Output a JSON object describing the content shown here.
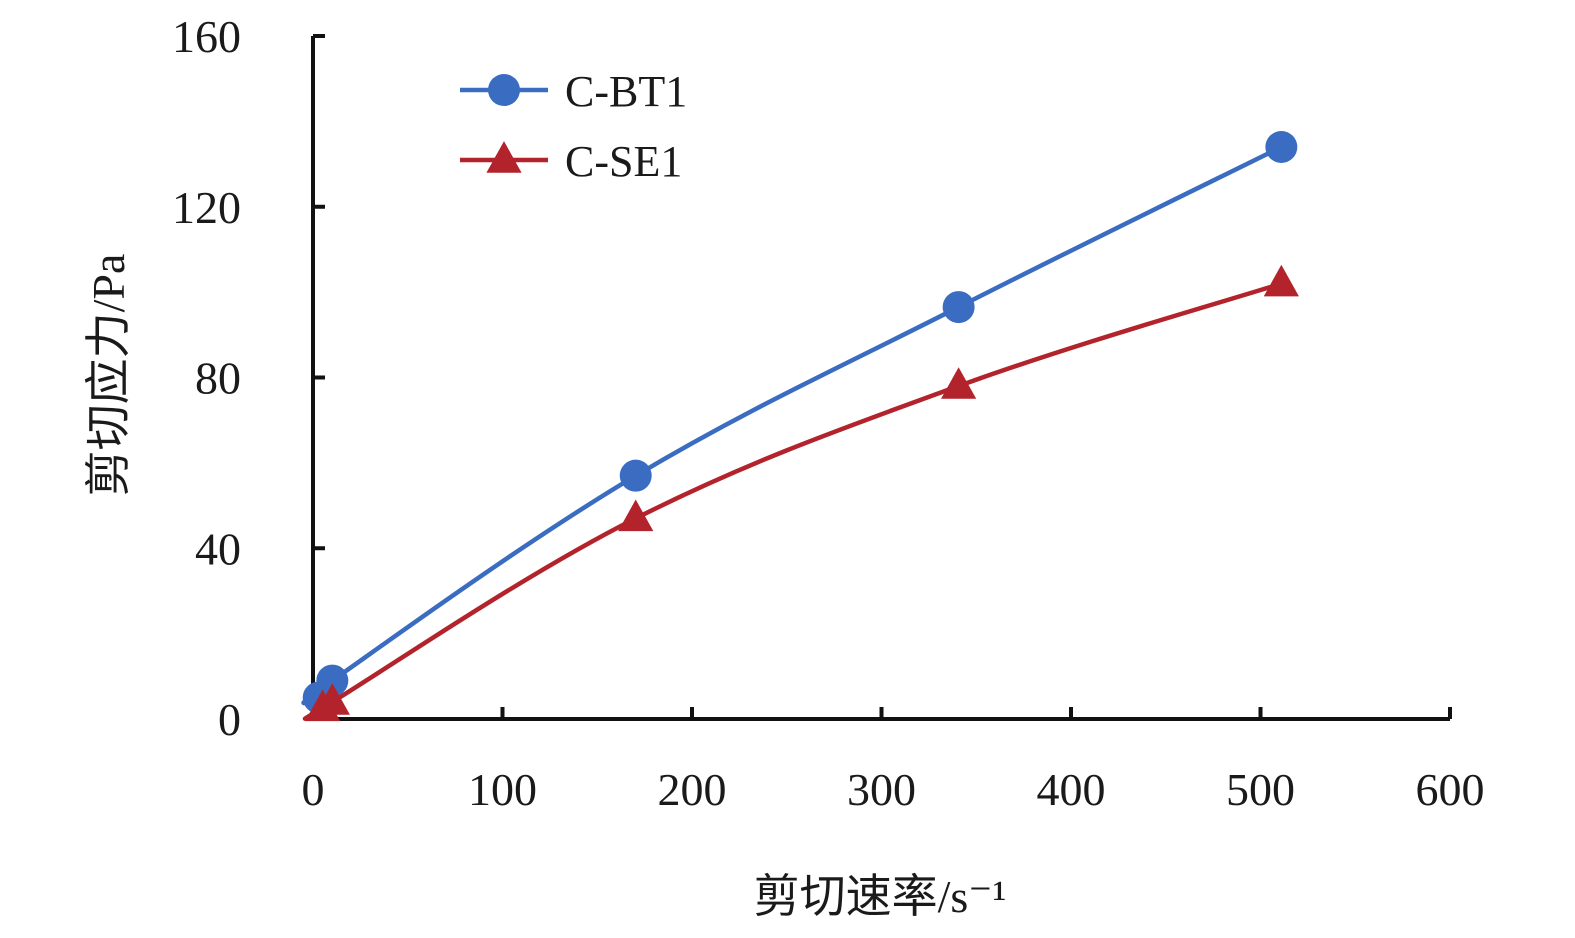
{
  "chart_data": {
    "type": "line",
    "title": "",
    "xlabel": "剪切速率/s⁻¹",
    "ylabel": "剪切应力/Pa",
    "xlim": [
      0,
      600
    ],
    "ylim": [
      0,
      160
    ],
    "x_ticks": [
      "0",
      "100",
      "200",
      "300",
      "400",
      "500",
      "600"
    ],
    "y_ticks": [
      "0",
      "40",
      "80",
      "120",
      "160"
    ],
    "grid": false,
    "legend": "top-left",
    "series": [
      {
        "name": "C-BT1",
        "color": "#3a6cc2",
        "marker": "circle",
        "x": [
          3,
          10.2,
          170.3,
          340.7,
          511
        ],
        "y": [
          5,
          9,
          57,
          96.5,
          134
        ]
      },
      {
        "name": "C-SE1",
        "color": "#b3232c",
        "marker": "triangle",
        "x": [
          5.1,
          10.2,
          170.3,
          340.7,
          511
        ],
        "y": [
          2.5,
          4,
          47,
          78,
          102
        ]
      }
    ]
  }
}
